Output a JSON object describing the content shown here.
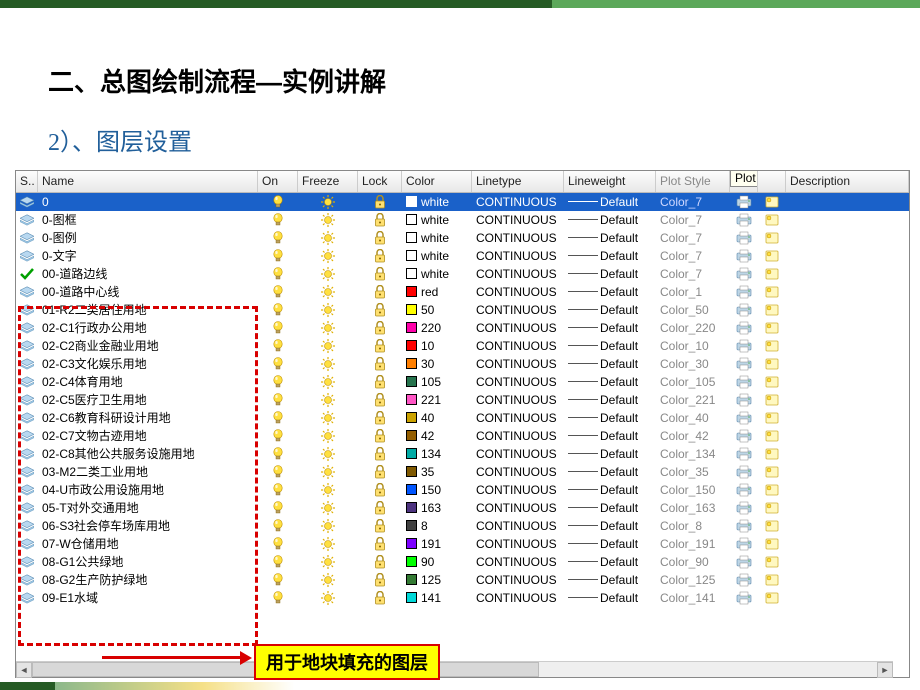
{
  "headings": {
    "h1": "二、总图绘制流程—实例讲解",
    "h2": "2）、图层设置"
  },
  "callout": {
    "label": "用于地块填充的图层"
  },
  "table": {
    "headers": {
      "s": "S..",
      "name": "Name",
      "on": "On",
      "freeze": "Freeze",
      "lock": "Lock",
      "color": "Color",
      "linetype": "Linetype",
      "lineweight": "Lineweight",
      "plotstyle": "Plot Style",
      "p": "P..",
      "plot_tooltip": "Plot",
      "description": "Description"
    },
    "rows": [
      {
        "status": "layer",
        "name": "0",
        "selected": true,
        "color_hex": "#ffffff",
        "color_label": "white",
        "linetype": "CONTINUOUS",
        "lineweight": "Default",
        "plotstyle": "Color_7"
      },
      {
        "status": "layer",
        "name": "0-图框",
        "color_hex": "#ffffff",
        "color_label": "white",
        "linetype": "CONTINUOUS",
        "lineweight": "Default",
        "plotstyle": "Color_7"
      },
      {
        "status": "layer",
        "name": "0-图例",
        "color_hex": "#ffffff",
        "color_label": "white",
        "linetype": "CONTINUOUS",
        "lineweight": "Default",
        "plotstyle": "Color_7"
      },
      {
        "status": "layer",
        "name": "0-文字",
        "color_hex": "#ffffff",
        "color_label": "white",
        "linetype": "CONTINUOUS",
        "lineweight": "Default",
        "plotstyle": "Color_7"
      },
      {
        "status": "check",
        "name": "00-道路边线",
        "color_hex": "#ffffff",
        "color_label": "white",
        "linetype": "CONTINUOUS",
        "lineweight": "Default",
        "plotstyle": "Color_7"
      },
      {
        "status": "layer",
        "name": "00-道路中心线",
        "color_hex": "#ff0000",
        "color_label": "red",
        "linetype": "CONTINUOUS",
        "lineweight": "Default",
        "plotstyle": "Color_1"
      },
      {
        "status": "layer",
        "name": "01-R2二类居住用地",
        "color_hex": "#ffff00",
        "color_label": "50",
        "linetype": "CONTINUOUS",
        "lineweight": "Default",
        "plotstyle": "Color_50"
      },
      {
        "status": "layer",
        "name": "02-C1行政办公用地",
        "color_hex": "#ff00aa",
        "color_label": "220",
        "linetype": "CONTINUOUS",
        "lineweight": "Default",
        "plotstyle": "Color_220"
      },
      {
        "status": "layer",
        "name": "02-C2商业金融业用地",
        "color_hex": "#ff0000",
        "color_label": "10",
        "linetype": "CONTINUOUS",
        "lineweight": "Default",
        "plotstyle": "Color_10"
      },
      {
        "status": "layer",
        "name": "02-C3文化娱乐用地",
        "color_hex": "#ff7f00",
        "color_label": "30",
        "linetype": "CONTINUOUS",
        "lineweight": "Default",
        "plotstyle": "Color_30"
      },
      {
        "status": "layer",
        "name": "02-C4体育用地",
        "color_hex": "#26734d",
        "color_label": "105",
        "linetype": "CONTINUOUS",
        "lineweight": "Default",
        "plotstyle": "Color_105"
      },
      {
        "status": "layer",
        "name": "02-C5医疗卫生用地",
        "color_hex": "#ff55c5",
        "color_label": "221",
        "linetype": "CONTINUOUS",
        "lineweight": "Default",
        "plotstyle": "Color_221"
      },
      {
        "status": "layer",
        "name": "02-C6教育科研设计用地",
        "color_hex": "#cca300",
        "color_label": "40",
        "linetype": "CONTINUOUS",
        "lineweight": "Default",
        "plotstyle": "Color_40"
      },
      {
        "status": "layer",
        "name": "02-C7文物古迹用地",
        "color_hex": "#945e00",
        "color_label": "42",
        "linetype": "CONTINUOUS",
        "lineweight": "Default",
        "plotstyle": "Color_42"
      },
      {
        "status": "layer",
        "name": "02-C8其他公共服务设施用地",
        "color_hex": "#00aaa5",
        "color_label": "134",
        "linetype": "CONTINUOUS",
        "lineweight": "Default",
        "plotstyle": "Color_134"
      },
      {
        "status": "layer",
        "name": "03-M2二类工业用地",
        "color_hex": "#7f5900",
        "color_label": "35",
        "linetype": "CONTINUOUS",
        "lineweight": "Default",
        "plotstyle": "Color_35"
      },
      {
        "status": "layer",
        "name": "04-U市政公用设施用地",
        "color_hex": "#0055ff",
        "color_label": "150",
        "linetype": "CONTINUOUS",
        "lineweight": "Default",
        "plotstyle": "Color_150"
      },
      {
        "status": "layer",
        "name": "05-T对外交通用地",
        "color_hex": "#4d3380",
        "color_label": "163",
        "linetype": "CONTINUOUS",
        "lineweight": "Default",
        "plotstyle": "Color_163"
      },
      {
        "status": "layer",
        "name": "06-S3社会停车场库用地",
        "color_hex": "#404040",
        "color_label": "8",
        "linetype": "CONTINUOUS",
        "lineweight": "Default",
        "plotstyle": "Color_8"
      },
      {
        "status": "layer",
        "name": "07-W仓储用地",
        "color_hex": "#7c00ff",
        "color_label": "191",
        "linetype": "CONTINUOUS",
        "lineweight": "Default",
        "plotstyle": "Color_191"
      },
      {
        "status": "layer",
        "name": "08-G1公共绿地",
        "color_hex": "#00ff00",
        "color_label": "90",
        "linetype": "CONTINUOUS",
        "lineweight": "Default",
        "plotstyle": "Color_90"
      },
      {
        "status": "layer",
        "name": "08-G2生产防护绿地",
        "color_hex": "#337a33",
        "color_label": "125",
        "linetype": "CONTINUOUS",
        "lineweight": "Default",
        "plotstyle": "Color_125"
      },
      {
        "status": "layer",
        "name": "09-E1水域",
        "color_hex": "#00d9d9",
        "color_label": "141",
        "linetype": "CONTINUOUS",
        "lineweight": "Default",
        "plotstyle": "Color_141"
      }
    ]
  }
}
